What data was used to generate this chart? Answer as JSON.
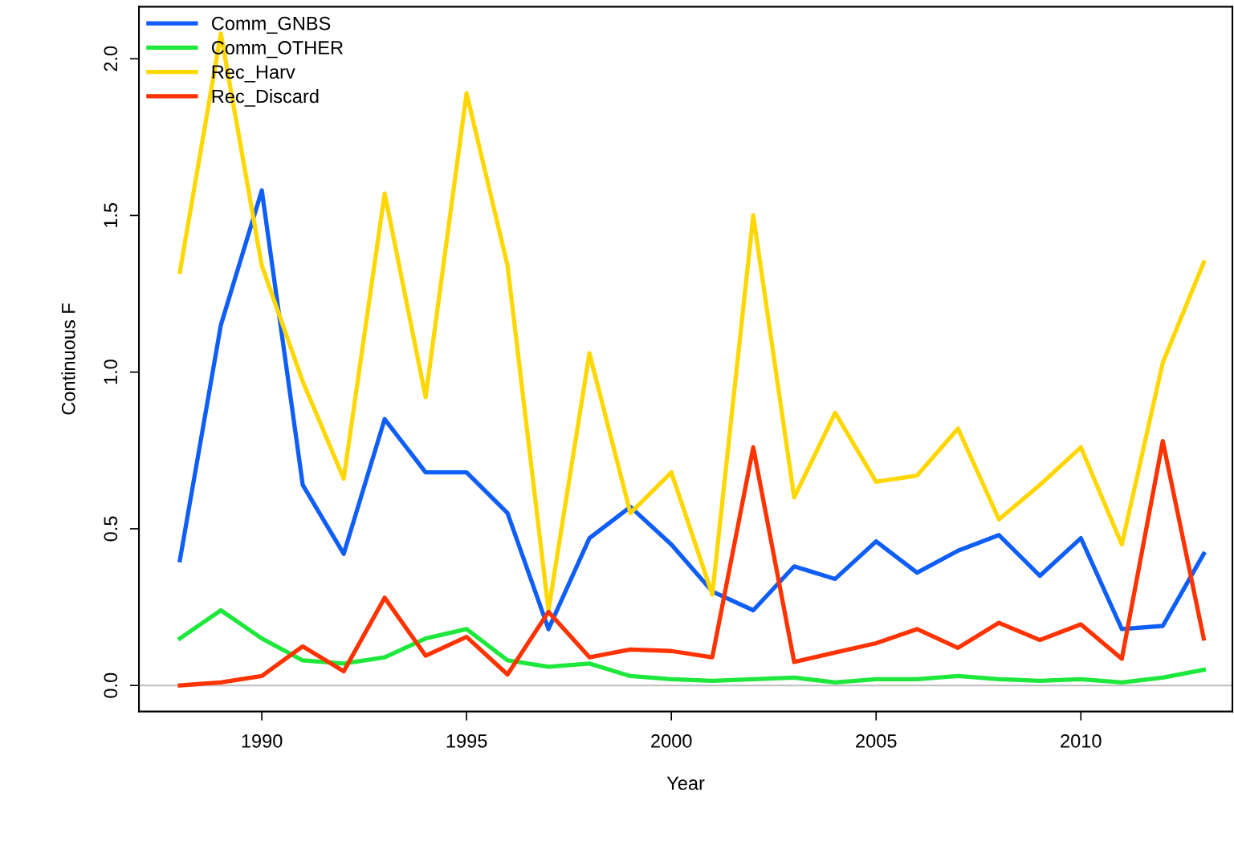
{
  "chart_data": {
    "type": "line",
    "xlabel": "Year",
    "ylabel": "Continuous F",
    "x": [
      1988,
      1989,
      1990,
      1991,
      1992,
      1993,
      1994,
      1995,
      1996,
      1997,
      1998,
      1999,
      2000,
      2001,
      2002,
      2003,
      2004,
      2005,
      2006,
      2007,
      2008,
      2009,
      2010,
      2011,
      2012,
      2013
    ],
    "series": [
      {
        "name": "Comm_GNBS",
        "color": "#0f5ef7",
        "values": [
          0.4,
          1.15,
          1.58,
          0.64,
          0.42,
          0.85,
          0.68,
          0.68,
          0.55,
          0.18,
          0.47,
          0.57,
          0.45,
          0.3,
          0.24,
          0.38,
          0.34,
          0.46,
          0.36,
          0.43,
          0.48,
          0.35,
          0.47,
          0.18,
          0.19,
          0.42
        ]
      },
      {
        "name": "Comm_OTHER",
        "color": "#1ee83c",
        "values": [
          0.15,
          0.24,
          0.15,
          0.08,
          0.07,
          0.09,
          0.15,
          0.18,
          0.08,
          0.06,
          0.07,
          0.03,
          0.02,
          0.015,
          0.02,
          0.025,
          0.01,
          0.02,
          0.02,
          0.03,
          0.02,
          0.015,
          0.02,
          0.01,
          0.025,
          0.05
        ]
      },
      {
        "name": "Rec_Harv",
        "color": "#ffd700",
        "values": [
          1.32,
          2.08,
          1.34,
          0.97,
          0.66,
          1.57,
          0.92,
          1.89,
          1.34,
          0.24,
          1.06,
          0.55,
          0.68,
          0.29,
          1.5,
          0.6,
          0.87,
          0.65,
          0.67,
          0.82,
          0.53,
          0.64,
          0.76,
          0.45,
          1.03,
          1.35
        ]
      },
      {
        "name": "Rec_Discard",
        "color": "#ff3300",
        "values": [
          0.0,
          0.01,
          0.03,
          0.125,
          0.045,
          0.28,
          0.095,
          0.155,
          0.035,
          0.235,
          0.09,
          0.115,
          0.11,
          0.09,
          0.76,
          0.075,
          0.105,
          0.135,
          0.18,
          0.12,
          0.2,
          0.145,
          0.195,
          0.085,
          0.78,
          0.15
        ]
      }
    ],
    "xlim": [
      1987,
      2013.7
    ],
    "xticks": [
      1990,
      1995,
      2000,
      2005,
      2010
    ],
    "ylim": [
      -0.083,
      2.166
    ],
    "yticks": [
      {
        "value": 0,
        "label": "0.0"
      },
      {
        "value": 0.5,
        "label": "0.5"
      },
      {
        "value": 1,
        "label": "1.0"
      },
      {
        "value": 1.5,
        "label": "1.5"
      },
      {
        "value": 2,
        "label": "2.0"
      }
    ],
    "ref_lines": [
      {
        "axis": "y",
        "value": 0,
        "color": "#bebebe"
      }
    ],
    "grid": false,
    "legend": "top left",
    "marker": "none",
    "line_style": "solid"
  }
}
